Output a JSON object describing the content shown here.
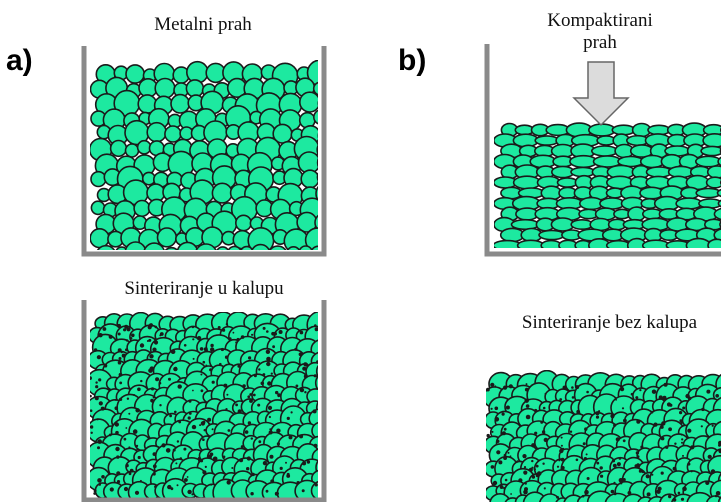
{
  "panel_a": {
    "letter": "a)",
    "top_caption": "Metalni prah",
    "bottom_caption": "Sinteriranje u kalupu"
  },
  "panel_b": {
    "letter": "b)",
    "top_caption_line1": "Kompaktirani",
    "top_caption_line2": "prah",
    "bottom_caption": "Sinteriranje bez kalupa"
  },
  "colors": {
    "particle": "#1de9a0",
    "particle_stroke": "#1a1a1a",
    "container": "#888888",
    "arrow": "#d8d8d8"
  }
}
